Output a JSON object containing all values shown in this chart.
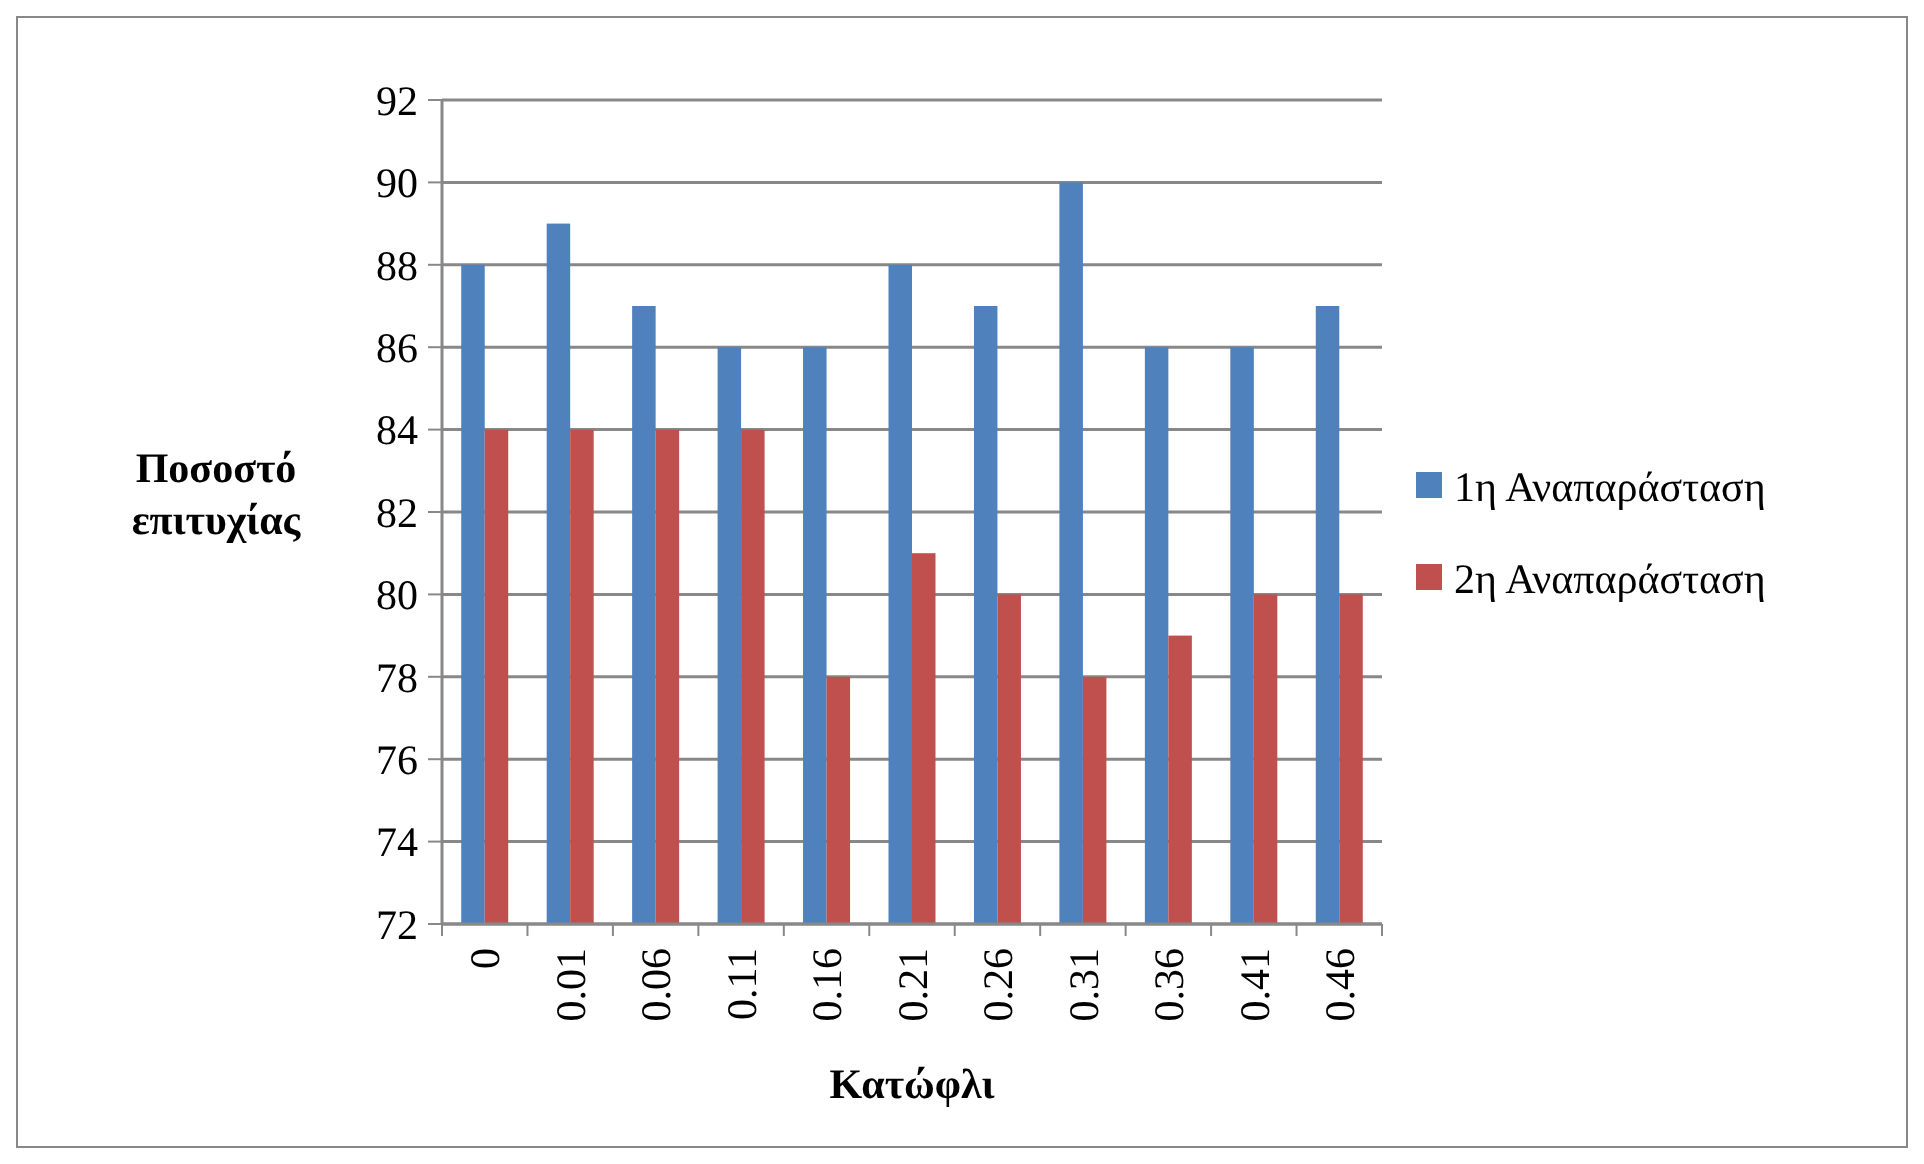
{
  "chart_data": {
    "type": "bar",
    "xlabel": "Κατώφλι",
    "ylabel": "Ποσοστό επιτυχίας",
    "categories": [
      "0",
      "0.01",
      "0.06",
      "0.11",
      "0.16",
      "0.21",
      "0.26",
      "0.31",
      "0.36",
      "0.41",
      "0.46"
    ],
    "series": [
      {
        "name": "1η Αναπαράσταση",
        "color": "#4f81bd",
        "values": [
          88,
          89,
          87,
          86,
          86,
          88,
          87,
          90,
          86,
          86,
          87
        ]
      },
      {
        "name": "2η Αναπαράσταση",
        "color": "#c0504d",
        "values": [
          84,
          84,
          84,
          84,
          78,
          81,
          80,
          78,
          79,
          80,
          80
        ]
      }
    ],
    "ylim": [
      72,
      92
    ],
    "yticks": [
      72,
      74,
      76,
      78,
      80,
      82,
      84,
      86,
      88,
      90,
      92
    ],
    "grid": "y",
    "legend": "right"
  }
}
